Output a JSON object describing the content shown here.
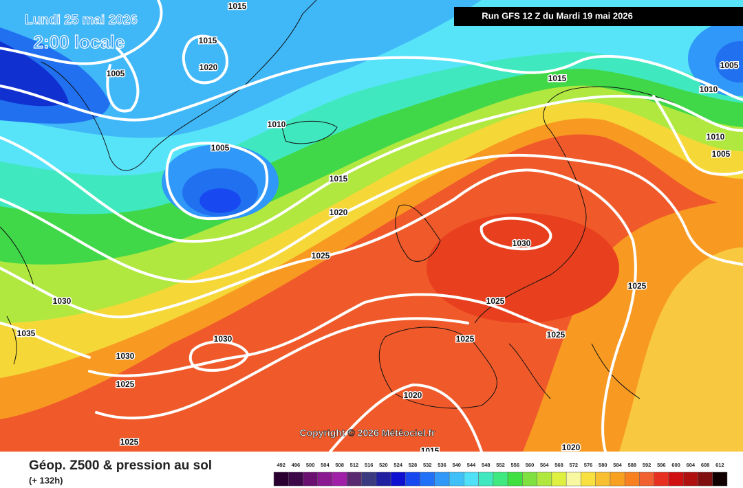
{
  "date_label": "Lundi 25 mai 2026",
  "time_label": "2:00 locale",
  "run_label": "Run GFS 12 Z du Mardi 19 mai 2026",
  "copyright": "Copyright © 2026 Météociel.fr",
  "footer": {
    "title": "Géop. Z500 & pression au sol",
    "subtitle": "(+ 132h)"
  },
  "isobar_labels": [
    "1015",
    "1015",
    "1020",
    "1005",
    "1010",
    "1005",
    "1015",
    "1020",
    "1025",
    "1030",
    "1025",
    "1025",
    "1025",
    "1025",
    "1030",
    "1030",
    "1035",
    "1030",
    "1025",
    "1020",
    "1025",
    "1015",
    "1020",
    "1015",
    "1010",
    "1005",
    "1010",
    "1005"
  ],
  "scale": {
    "labels": [
      492,
      496,
      500,
      504,
      508,
      512,
      516,
      520,
      524,
      528,
      532,
      536,
      540,
      544,
      548,
      552,
      556,
      560,
      564,
      568,
      572,
      576,
      580,
      584,
      588,
      592,
      596,
      600,
      604,
      608,
      612
    ],
    "colors": [
      "#2a0030",
      "#3c0848",
      "#6a1070",
      "#8a1890",
      "#a020a8",
      "#5a2a70",
      "#3a3a80",
      "#2020a0",
      "#1010d0",
      "#1848f0",
      "#2070f8",
      "#3098f8",
      "#40c0f8",
      "#50e0f8",
      "#40e8c0",
      "#40e880",
      "#40e040",
      "#80e040",
      "#b0e840",
      "#e0f040",
      "#f8f8a0",
      "#f8e040",
      "#f8c030",
      "#f8a020",
      "#f88020",
      "#f06030",
      "#e83020",
      "#d01010",
      "#b01010",
      "#801010",
      "#100000"
    ]
  }
}
